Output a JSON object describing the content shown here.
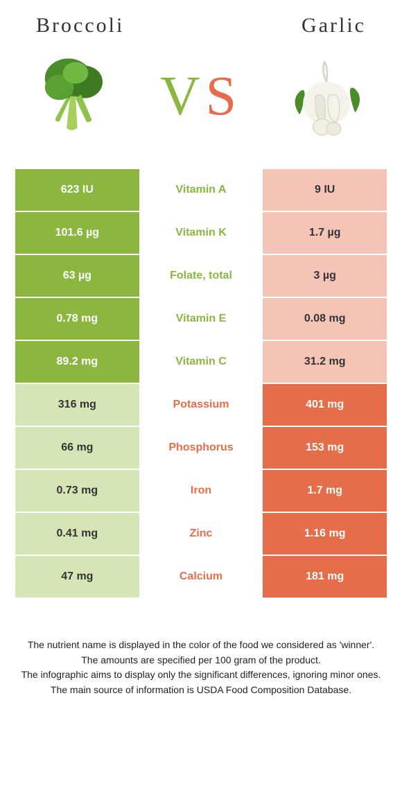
{
  "colors": {
    "green": "#8bb640",
    "orange": "#e56d4a",
    "green_pale": "#d6e5b6",
    "orange_pale": "#f4c5b7",
    "text_dark": "#333333",
    "white": "#ffffff"
  },
  "header": {
    "left_title": "Broccoli",
    "right_title": "Garlic",
    "vs_letter_v": "V",
    "vs_letter_s": "S",
    "left_icon": "broccoli",
    "right_icon": "garlic"
  },
  "rows": [
    {
      "label": "Vitamin A",
      "left": "623 IU",
      "right": "9 IU",
      "winner": "left"
    },
    {
      "label": "Vitamin K",
      "left": "101.6 µg",
      "right": "1.7 µg",
      "winner": "left"
    },
    {
      "label": "Folate, total",
      "left": "63 µg",
      "right": "3 µg",
      "winner": "left"
    },
    {
      "label": "Vitamin E",
      "left": "0.78 mg",
      "right": "0.08 mg",
      "winner": "left"
    },
    {
      "label": "Vitamin C",
      "left": "89.2 mg",
      "right": "31.2 mg",
      "winner": "left"
    },
    {
      "label": "Potassium",
      "left": "316 mg",
      "right": "401 mg",
      "winner": "right"
    },
    {
      "label": "Phosphorus",
      "left": "66 mg",
      "right": "153 mg",
      "winner": "right"
    },
    {
      "label": "Iron",
      "left": "0.73 mg",
      "right": "1.7 mg",
      "winner": "right"
    },
    {
      "label": "Zinc",
      "left": "0.41 mg",
      "right": "1.16 mg",
      "winner": "right"
    },
    {
      "label": "Calcium",
      "left": "47 mg",
      "right": "181 mg",
      "winner": "right"
    }
  ],
  "caption": {
    "line1": "The nutrient name is displayed in the color of the food we considered as 'winner'.",
    "line2": "The amounts are specified per 100 gram of the product.",
    "line3": "The infographic aims to display only the significant differences, ignoring minor ones.",
    "line4": "The main source of information is USDA Food Composition Database."
  }
}
